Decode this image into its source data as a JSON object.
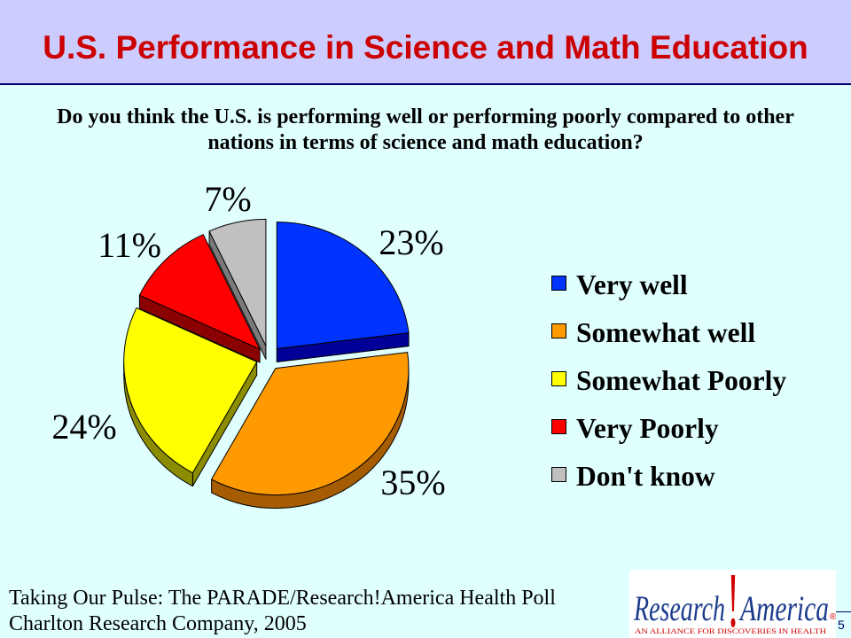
{
  "header": {
    "title": "U.S. Performance in Science and Math Education"
  },
  "question": {
    "lines": [
      "Do you think the U.S. is performing well or performing poorly compared to other",
      "nations in terms of science and math education?"
    ]
  },
  "chart_data": {
    "type": "pie",
    "categories": [
      "Very well",
      "Somewhat well",
      "Somewhat Poorly",
      "Very Poorly",
      "Don't know"
    ],
    "values": [
      23,
      35,
      24,
      11,
      7
    ],
    "value_suffix": "%",
    "colors": [
      "#0033ff",
      "#ff9900",
      "#ffff00",
      "#ff0000",
      "#c0c0c0"
    ],
    "exploded": true,
    "three_d": true,
    "legend_position": "right"
  },
  "footer": {
    "lines": [
      "Taking Our Pulse: The PARADE/Research!America Health Poll",
      "Charlton Research Company, 2005"
    ]
  },
  "logo": {
    "word1": "Research",
    "mark": "!",
    "word2": "America",
    "registered": "®",
    "tagline": "AN ALLIANCE FOR DISCOVERIES IN HEALTH",
    "text_color": "#1a3a8c",
    "accent_color": "#d00000"
  },
  "slide_number": "5",
  "theme": {
    "header_background": "#ccccff",
    "body_background": "#e0ffff",
    "title_color": "#cc0000",
    "rule_color": "#000066"
  }
}
